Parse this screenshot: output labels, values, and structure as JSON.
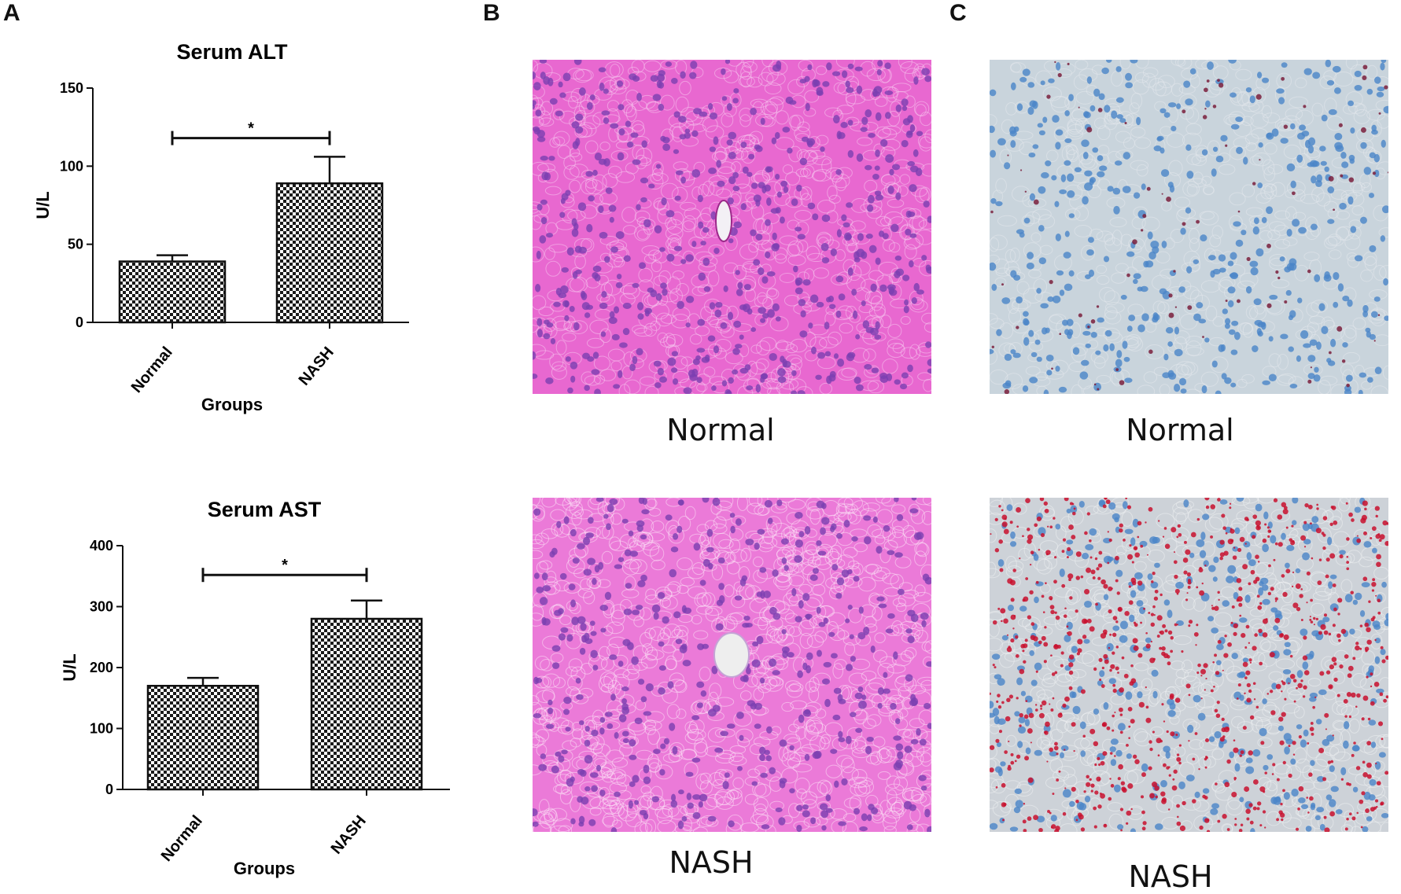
{
  "panels": {
    "a": "A",
    "b": "B",
    "c": "C"
  },
  "colors": {
    "bar_pattern_dark": "#1a1a1a",
    "bar_pattern_light": "#ffffff",
    "he_background": "#e868d0",
    "he_nucleus": "#7a3fb0",
    "oro_background": "#c9d4dc",
    "oro_nucleus": "#4a84c8",
    "oro_lipid": "#c8102e"
  },
  "chart_data": [
    {
      "type": "bar",
      "title": "Serum ALT",
      "xlabel": "Groups",
      "ylabel": "U/L",
      "categories": [
        "Normal",
        "NASH"
      ],
      "values": [
        39,
        89
      ],
      "error": [
        4,
        17
      ],
      "ylim": [
        0,
        150
      ],
      "yticks": [
        "0",
        "50",
        "100",
        "150"
      ],
      "significance": {
        "between": [
          "Normal",
          "NASH"
        ],
        "label": "*",
        "y": 118
      },
      "grid": false
    },
    {
      "type": "bar",
      "title": "Serum AST",
      "xlabel": "Groups",
      "ylabel": "U/L",
      "categories": [
        "Normal",
        "NASH"
      ],
      "values": [
        170,
        280
      ],
      "error": [
        13,
        30
      ],
      "ylim": [
        0,
        400
      ],
      "yticks": [
        "0",
        "100",
        "200",
        "300",
        "400"
      ],
      "significance": {
        "between": [
          "Normal",
          "NASH"
        ],
        "label": "*",
        "y": 352
      },
      "grid": false
    }
  ],
  "micrographs": {
    "he": {
      "normal_label": "Normal",
      "nash_label": "NASH"
    },
    "oro": {
      "normal_label": "Normal",
      "nash_label": "NASH"
    }
  }
}
